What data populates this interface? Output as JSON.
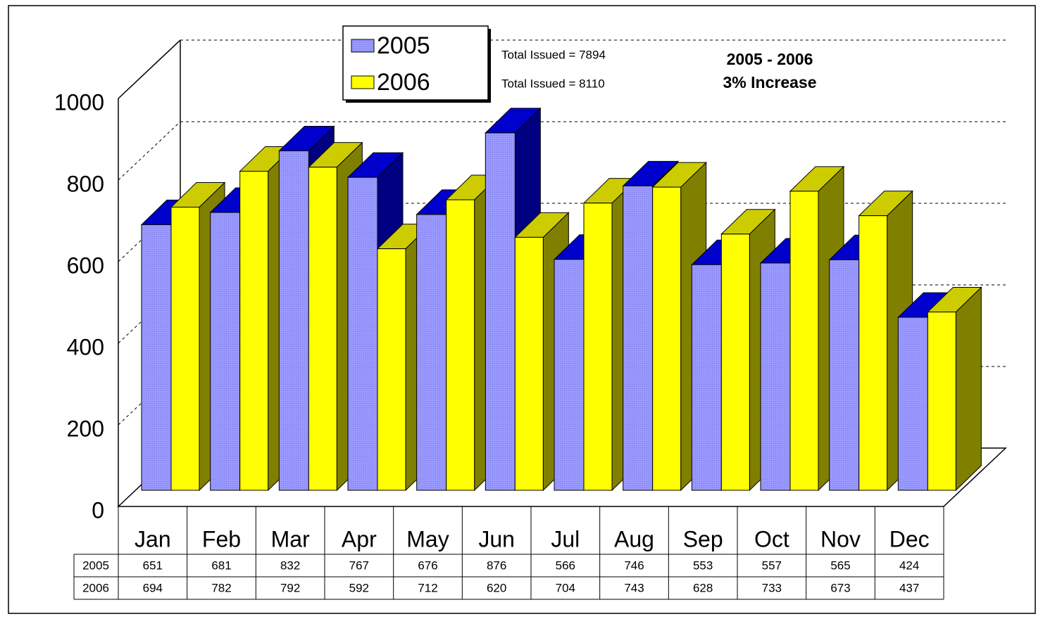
{
  "chart_data": {
    "type": "bar3d",
    "categories": [
      "Jan",
      "Feb",
      "Mar",
      "Apr",
      "May",
      "Jun",
      "Jul",
      "Aug",
      "Sep",
      "Oct",
      "Nov",
      "Dec"
    ],
    "series": [
      {
        "name": "2005",
        "color": "#9999ff",
        "values": [
          651,
          681,
          832,
          767,
          676,
          876,
          566,
          746,
          553,
          557,
          565,
          424
        ]
      },
      {
        "name": "2006",
        "color": "#ffff00",
        "values": [
          694,
          782,
          792,
          592,
          712,
          620,
          704,
          743,
          628,
          733,
          673,
          437
        ]
      }
    ],
    "ylim": [
      0,
      1000
    ],
    "yticks": [
      0,
      200,
      400,
      600,
      800,
      1000
    ],
    "grid": true,
    "annotations": [
      "Total Issued = 7894",
      "Total Issued = 8110",
      "2005 - 2006",
      "3% Increase"
    ]
  }
}
